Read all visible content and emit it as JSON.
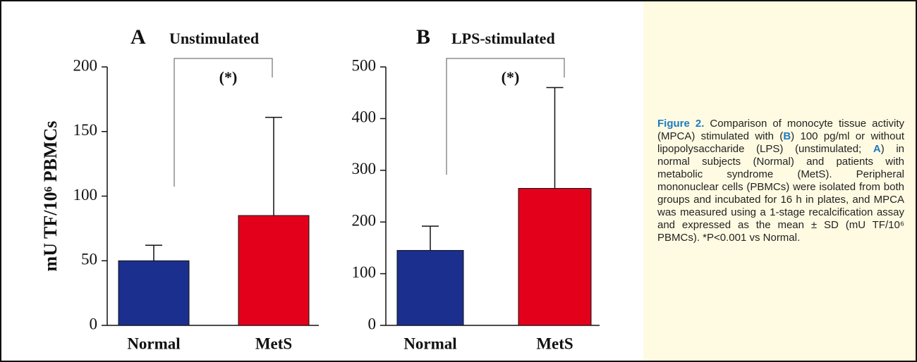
{
  "chart_data": [
    {
      "type": "bar",
      "panel": "A",
      "title": "Unstimulated",
      "ylabel": "mU TF/10⁶ PBMCs",
      "categories": [
        "Normal",
        "MetS"
      ],
      "series": [
        {
          "values": [
            50,
            85
          ],
          "errors": [
            12,
            76
          ],
          "colors": [
            "#1b2f8e",
            "#e3001b"
          ]
        }
      ],
      "annotation": "(*)",
      "ylim": [
        0,
        200
      ],
      "yticks": [
        0,
        50,
        100,
        150,
        200
      ]
    },
    {
      "type": "bar",
      "panel": "B",
      "title": "LPS-stimulated",
      "categories": [
        "Normal",
        "MetS"
      ],
      "series": [
        {
          "values": [
            145,
            265
          ],
          "errors": [
            47,
            195
          ],
          "colors": [
            "#1b2f8e",
            "#e3001b"
          ]
        }
      ],
      "annotation": "(*)",
      "ylim": [
        0,
        500
      ],
      "yticks": [
        0,
        100,
        200,
        300,
        400,
        500
      ]
    }
  ],
  "caption": [
    "Figure 2.",
    " Comparison of monocyte tissue activity (MPCA) stimulated with (",
    "B",
    ") 100 pg/ml or without lipopolysaccharide (LPS) (unstimulated; ",
    "A",
    ") in normal subjects (Normal) and patients with metabolic syndrome (MetS). Peripheral mononuclear cells (PBMCs) were isolated from both groups and incubated for 16 h in plates, and MPCA was measured using a 1-stage recalcification assay and expressed as the mean ± SD (mU TF/10⁶ PBMCs). *P<0.001 vs Normal."
  ]
}
